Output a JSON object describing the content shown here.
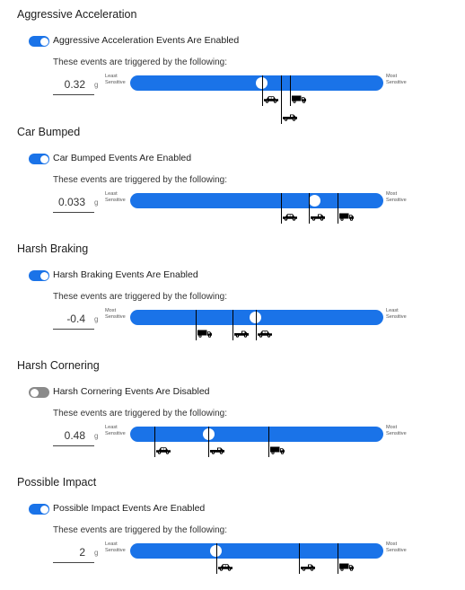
{
  "sections": [
    {
      "title": "Aggressive Acceleration",
      "enabled": true,
      "toggle_label": "Aggressive Acceleration Events Are Enabled",
      "subtitle": "These events are triggered by the following:",
      "value": "0.32",
      "unit": "g",
      "left_label": "Least Sensitive",
      "right_label": "Most Sensitive",
      "slider_position": 0.52,
      "vehicles": [
        {
          "type": "car",
          "position": 0.52
        },
        {
          "type": "pickup",
          "position": 0.595
        },
        {
          "type": "truck",
          "position": 0.63
        }
      ]
    },
    {
      "title": "Car Bumped",
      "enabled": true,
      "toggle_label": "Car Bumped Events Are Enabled",
      "subtitle": "These events are triggered by the following:",
      "value": "0.033",
      "unit": "g",
      "left_label": "Least Sensitive",
      "right_label": "Most Sensitive",
      "slider_position": 0.73,
      "vehicles": [
        {
          "type": "car",
          "position": 0.595
        },
        {
          "type": "pickup",
          "position": 0.705
        },
        {
          "type": "truck",
          "position": 0.82
        }
      ]
    },
    {
      "title": "Harsh Braking",
      "enabled": true,
      "toggle_label": "Harsh Braking Events Are Enabled",
      "subtitle": "These events are triggered by the following:",
      "value": "-0.4",
      "unit": "g",
      "left_label": "Most Sensitive",
      "right_label": "Least Sensitive",
      "slider_position": 0.495,
      "vehicles": [
        {
          "type": "truck",
          "position": 0.26
        },
        {
          "type": "pickup",
          "position": 0.405
        },
        {
          "type": "car",
          "position": 0.495
        }
      ]
    },
    {
      "title": "Harsh Cornering",
      "enabled": false,
      "toggle_label": "Harsh Cornering Events Are Disabled",
      "subtitle": "These events are triggered by the following:",
      "value": "0.48",
      "unit": "g",
      "left_label": "Least Sensitive",
      "right_label": "Most Sensitive",
      "slider_position": 0.31,
      "vehicles": [
        {
          "type": "car",
          "position": 0.095
        },
        {
          "type": "pickup",
          "position": 0.31
        },
        {
          "type": "truck",
          "position": 0.545
        }
      ]
    },
    {
      "title": "Possible Impact",
      "enabled": true,
      "toggle_label": "Possible Impact Events Are Enabled",
      "subtitle": "These events are triggered by the following:",
      "value": "2",
      "unit": "g",
      "left_label": "Least Sensitive",
      "right_label": "Most Sensitive",
      "slider_position": 0.34,
      "vehicles": [
        {
          "type": "car",
          "position": 0.34
        },
        {
          "type": "pickup",
          "position": 0.665
        },
        {
          "type": "truck",
          "position": 0.82
        }
      ]
    }
  ],
  "colors": {
    "accent": "#1a73e8",
    "toggle_off": "#8a8a8a",
    "marker": "#000000"
  }
}
